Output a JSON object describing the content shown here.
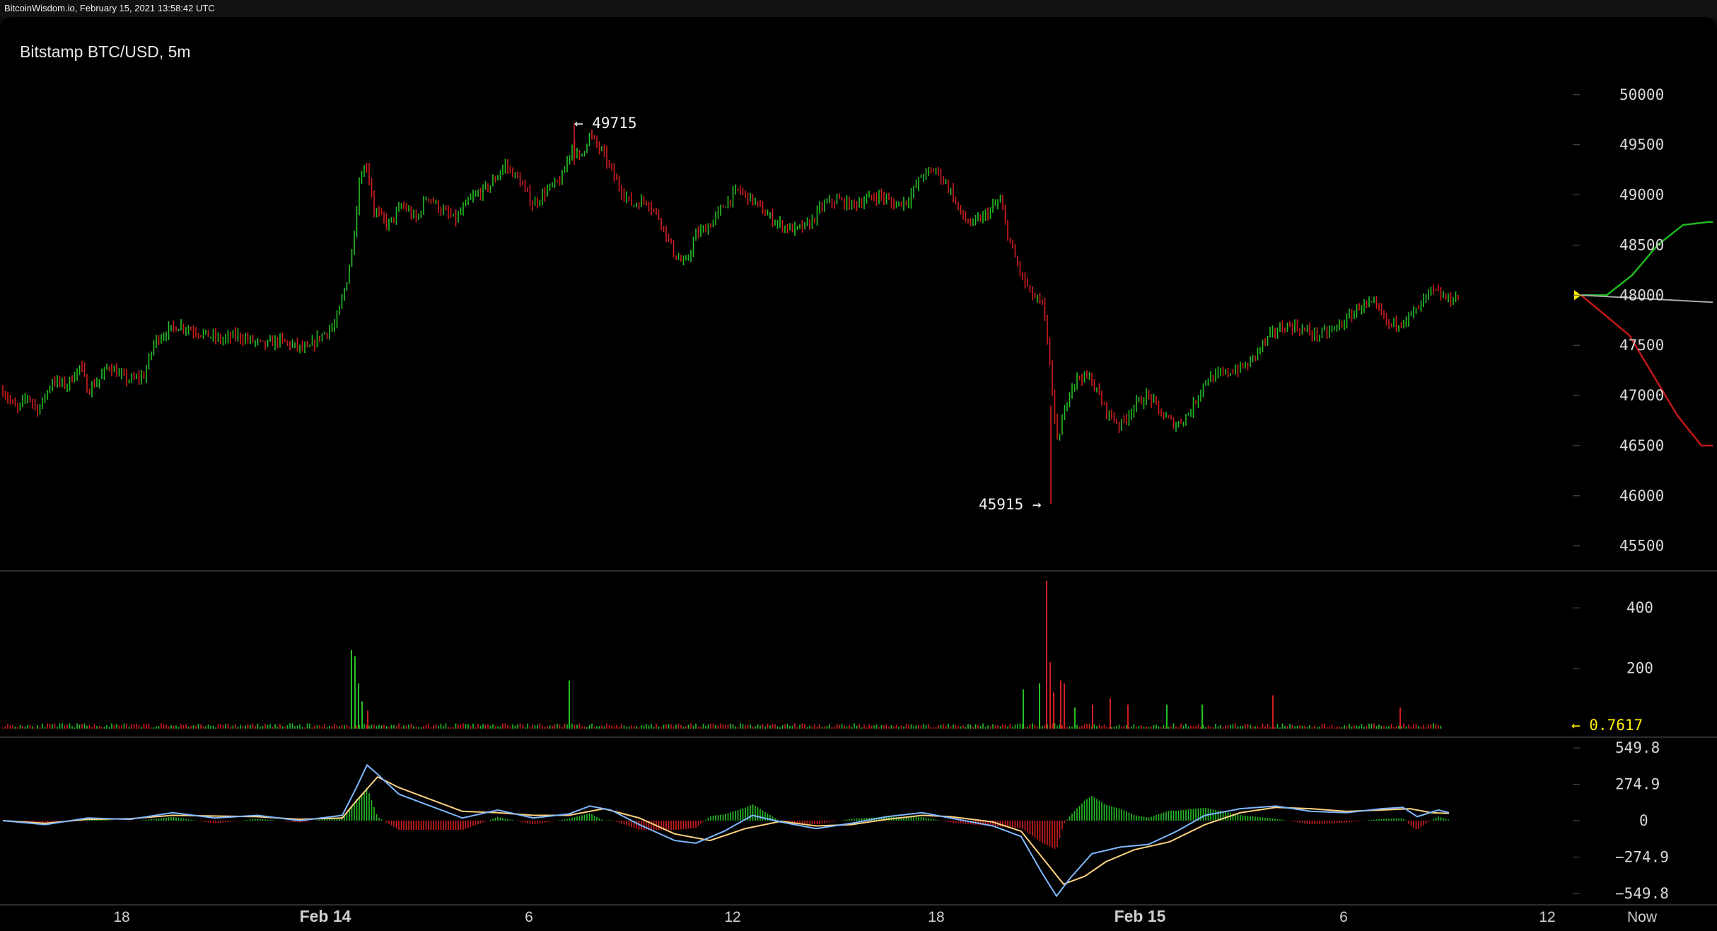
{
  "header": {
    "site_text": "BitcoinWisdom.io, February 15, 2021 13:58:42 UTC"
  },
  "chart": {
    "title": "Bitstamp BTC/USD, 5m"
  },
  "annotations": {
    "high_label": "← 49715",
    "low_label": "45915 →",
    "volume_label": "← 0.7617"
  },
  "colors": {
    "up": "#25c025",
    "down": "#d21f1f",
    "macd_fast": "#7fb8ff",
    "macd_slow": "#ffd27f",
    "depth_bid": "#1fb91f",
    "depth_ask": "#c21717",
    "marker": "#ffee00"
  },
  "chart_data": [
    {
      "type": "candlestick",
      "title": "Bitstamp BTC/USD, 5m",
      "y_ticks": [
        "50000",
        "49500",
        "49000",
        "48500",
        "48000",
        "47500",
        "47000",
        "46500",
        "46000",
        "45500"
      ],
      "x_ticks": [
        "18",
        "Feb 14",
        "6",
        "12",
        "18",
        "Feb 15",
        "6",
        "12",
        "Now"
      ],
      "ylim": [
        45300,
        50450
      ],
      "high": 49715,
      "low": 45915,
      "price_path": [
        [
          0,
          47050
        ],
        [
          20,
          46850
        ],
        [
          35,
          47000
        ],
        [
          50,
          46850
        ],
        [
          70,
          47150
        ],
        [
          90,
          47100
        ],
        [
          110,
          47300
        ],
        [
          120,
          47050
        ],
        [
          135,
          47150
        ],
        [
          150,
          47300
        ],
        [
          165,
          47200
        ],
        [
          180,
          47150
        ],
        [
          200,
          47200
        ],
        [
          215,
          47550
        ],
        [
          235,
          47650
        ],
        [
          250,
          47700
        ],
        [
          270,
          47650
        ],
        [
          290,
          47600
        ],
        [
          310,
          47550
        ],
        [
          330,
          47600
        ],
        [
          350,
          47550
        ],
        [
          370,
          47500
        ],
        [
          390,
          47550
        ],
        [
          410,
          47500
        ],
        [
          430,
          47450
        ],
        [
          450,
          47600
        ],
        [
          470,
          47700
        ],
        [
          485,
          48100
        ],
        [
          495,
          48500
        ],
        [
          505,
          49200
        ],
        [
          515,
          49300
        ],
        [
          525,
          48850
        ],
        [
          545,
          48700
        ],
        [
          565,
          48900
        ],
        [
          585,
          48750
        ],
        [
          600,
          49000
        ],
        [
          620,
          48850
        ],
        [
          640,
          48750
        ],
        [
          660,
          48950
        ],
        [
          690,
          49100
        ],
        [
          710,
          49300
        ],
        [
          730,
          49150
        ],
        [
          750,
          48900
        ],
        [
          770,
          49050
        ],
        [
          790,
          49150
        ],
        [
          805,
          49500
        ],
        [
          815,
          49350
        ],
        [
          830,
          49600
        ],
        [
          850,
          49400
        ],
        [
          870,
          49100
        ],
        [
          890,
          48900
        ],
        [
          910,
          48950
        ],
        [
          930,
          48750
        ],
        [
          950,
          48400
        ],
        [
          965,
          48300
        ],
        [
          980,
          48600
        ],
        [
          1000,
          48700
        ],
        [
          1020,
          48900
        ],
        [
          1040,
          49050
        ],
        [
          1060,
          48950
        ],
        [
          1080,
          48800
        ],
        [
          1100,
          48700
        ],
        [
          1120,
          48650
        ],
        [
          1140,
          48700
        ],
        [
          1160,
          48900
        ],
        [
          1180,
          48950
        ],
        [
          1200,
          48900
        ],
        [
          1220,
          48950
        ],
        [
          1240,
          49000
        ],
        [
          1260,
          48900
        ],
        [
          1280,
          48950
        ],
        [
          1300,
          49200
        ],
        [
          1320,
          49250
        ],
        [
          1340,
          49050
        ],
        [
          1355,
          48800
        ],
        [
          1370,
          48700
        ],
        [
          1390,
          48800
        ],
        [
          1410,
          48950
        ],
        [
          1425,
          48500
        ],
        [
          1440,
          48200
        ],
        [
          1455,
          48000
        ],
        [
          1470,
          47900
        ],
        [
          1480,
          47400
        ],
        [
          1490,
          46500
        ],
        [
          1500,
          46800
        ],
        [
          1510,
          47100
        ],
        [
          1525,
          47200
        ],
        [
          1540,
          47150
        ],
        [
          1560,
          46850
        ],
        [
          1580,
          46700
        ],
        [
          1600,
          46900
        ],
        [
          1620,
          47000
        ],
        [
          1640,
          46800
        ],
        [
          1660,
          46700
        ],
        [
          1680,
          46850
        ],
        [
          1700,
          47150
        ],
        [
          1720,
          47200
        ],
        [
          1740,
          47250
        ],
        [
          1760,
          47300
        ],
        [
          1780,
          47500
        ],
        [
          1800,
          47650
        ],
        [
          1820,
          47700
        ],
        [
          1840,
          47650
        ],
        [
          1860,
          47600
        ],
        [
          1880,
          47650
        ],
        [
          1900,
          47750
        ],
        [
          1920,
          47900
        ],
        [
          1940,
          47900
        ],
        [
          1960,
          47700
        ],
        [
          1980,
          47750
        ],
        [
          2000,
          47850
        ],
        [
          2020,
          48050
        ],
        [
          2045,
          47950
        ],
        [
          2060,
          48000
        ]
      ],
      "depth": {
        "current": 48000,
        "bid_levels": [
          48000,
          48200,
          48500,
          48700,
          48730
        ],
        "ask_levels": [
          48000,
          47800,
          47600,
          47200,
          46800,
          46500
        ]
      }
    },
    {
      "type": "bar",
      "title": "Volume",
      "y_ticks": [
        "400",
        "200"
      ],
      "ylim": [
        0,
        520
      ],
      "last_volume": 0.7617,
      "spikes": [
        {
          "x": 497,
          "value": 260,
          "dir": "up"
        },
        {
          "x": 502,
          "value": 240,
          "dir": "up"
        },
        {
          "x": 507,
          "value": 150,
          "dir": "up"
        },
        {
          "x": 512,
          "value": 90,
          "dir": "up"
        },
        {
          "x": 520,
          "value": 60,
          "dir": "down"
        },
        {
          "x": 805,
          "value": 160,
          "dir": "up"
        },
        {
          "x": 1447,
          "value": 130,
          "dir": "up"
        },
        {
          "x": 1470,
          "value": 150,
          "dir": "up"
        },
        {
          "x": 1480,
          "value": 490,
          "dir": "down"
        },
        {
          "x": 1485,
          "value": 220,
          "dir": "down"
        },
        {
          "x": 1490,
          "value": 120,
          "dir": "down"
        },
        {
          "x": 1500,
          "value": 160,
          "dir": "down"
        },
        {
          "x": 1505,
          "value": 150,
          "dir": "down"
        },
        {
          "x": 1520,
          "value": 70,
          "dir": "up"
        },
        {
          "x": 1545,
          "value": 80,
          "dir": "down"
        },
        {
          "x": 1570,
          "value": 100,
          "dir": "down"
        },
        {
          "x": 1595,
          "value": 80,
          "dir": "down"
        },
        {
          "x": 1650,
          "value": 80,
          "dir": "up"
        },
        {
          "x": 1700,
          "value": 80,
          "dir": "up"
        },
        {
          "x": 1800,
          "value": 110,
          "dir": "down"
        },
        {
          "x": 1980,
          "value": 70,
          "dir": "down"
        }
      ]
    },
    {
      "type": "line",
      "title": "MACD",
      "y_ticks": [
        "549.8",
        "274.9",
        "0",
        "−274.9",
        "−549.8"
      ],
      "ylim": [
        -620,
        620
      ],
      "series": [
        {
          "points": [
            [
              0,
              0
            ],
            [
              60,
              -30
            ],
            [
              120,
              20
            ],
            [
              180,
              10
            ],
            [
              240,
              60
            ],
            [
              300,
              20
            ],
            [
              360,
              40
            ],
            [
              420,
              0
            ],
            [
              480,
              40
            ],
            [
              500,
              250
            ],
            [
              515,
              420
            ],
            [
              530,
              350
            ],
            [
              560,
              200
            ],
            [
              600,
              120
            ],
            [
              650,
              20
            ],
            [
              700,
              80
            ],
            [
              750,
              20
            ],
            [
              800,
              50
            ],
            [
              830,
              110
            ],
            [
              860,
              80
            ],
            [
              900,
              -30
            ],
            [
              950,
              -150
            ],
            [
              980,
              -170
            ],
            [
              1020,
              -80
            ],
            [
              1060,
              40
            ],
            [
              1100,
              -10
            ],
            [
              1150,
              -60
            ],
            [
              1200,
              -20
            ],
            [
              1250,
              30
            ],
            [
              1300,
              60
            ],
            [
              1340,
              20
            ],
            [
              1400,
              -40
            ],
            [
              1440,
              -120
            ],
            [
              1470,
              -400
            ],
            [
              1490,
              -570
            ],
            [
              1510,
              -430
            ],
            [
              1540,
              -250
            ],
            [
              1580,
              -200
            ],
            [
              1620,
              -180
            ],
            [
              1660,
              -80
            ],
            [
              1700,
              40
            ],
            [
              1750,
              90
            ],
            [
              1800,
              110
            ],
            [
              1850,
              70
            ],
            [
              1900,
              60
            ],
            [
              1950,
              90
            ],
            [
              1980,
              100
            ],
            [
              2000,
              30
            ],
            [
              2030,
              80
            ],
            [
              2045,
              60
            ]
          ]
        },
        {
          "points": [
            [
              0,
              0
            ],
            [
              60,
              -20
            ],
            [
              120,
              10
            ],
            [
              180,
              15
            ],
            [
              240,
              40
            ],
            [
              300,
              35
            ],
            [
              360,
              30
            ],
            [
              420,
              10
            ],
            [
              480,
              20
            ],
            [
              500,
              150
            ],
            [
              530,
              330
            ],
            [
              560,
              250
            ],
            [
              600,
              170
            ],
            [
              650,
              70
            ],
            [
              700,
              60
            ],
            [
              750,
              40
            ],
            [
              800,
              40
            ],
            [
              850,
              90
            ],
            [
              900,
              20
            ],
            [
              950,
              -100
            ],
            [
              1000,
              -150
            ],
            [
              1050,
              -60
            ],
            [
              1100,
              -5
            ],
            [
              1150,
              -40
            ],
            [
              1200,
              -30
            ],
            [
              1250,
              10
            ],
            [
              1300,
              40
            ],
            [
              1340,
              30
            ],
            [
              1400,
              -10
            ],
            [
              1440,
              -80
            ],
            [
              1470,
              -280
            ],
            [
              1500,
              -480
            ],
            [
              1530,
              -420
            ],
            [
              1560,
              -310
            ],
            [
              1600,
              -220
            ],
            [
              1650,
              -160
            ],
            [
              1700,
              -30
            ],
            [
              1750,
              60
            ],
            [
              1800,
              100
            ],
            [
              1850,
              90
            ],
            [
              1900,
              70
            ],
            [
              1950,
              80
            ],
            [
              1990,
              90
            ],
            [
              2020,
              60
            ],
            [
              2045,
              55
            ]
          ]
        }
      ]
    }
  ]
}
